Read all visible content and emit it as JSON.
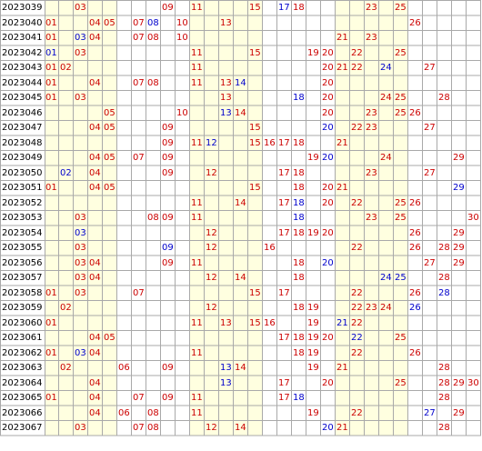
{
  "colors": {
    "red": "#cc0000",
    "blue": "#0000cc",
    "grid_line": "#a9a9a9",
    "yellow_col": "#ffffe0",
    "white_col": "#ffffff"
  },
  "rows": [
    {
      "issue": "2023039",
      "nums": [
        {
          "n": "03",
          "c": "red"
        },
        {
          "n": "09",
          "c": "red"
        },
        {
          "n": "11",
          "c": "red"
        },
        {
          "n": "15",
          "c": "red"
        },
        {
          "n": "17",
          "c": "blue"
        },
        {
          "n": "18",
          "c": "red"
        },
        {
          "n": "23",
          "c": "red"
        },
        {
          "n": "25",
          "c": "red"
        }
      ]
    },
    {
      "issue": "2023040",
      "nums": [
        {
          "n": "01",
          "c": "red"
        },
        {
          "n": "04",
          "c": "red"
        },
        {
          "n": "05",
          "c": "red"
        },
        {
          "n": "07",
          "c": "red"
        },
        {
          "n": "08",
          "c": "blue"
        },
        {
          "n": "10",
          "c": "red"
        },
        {
          "n": "13",
          "c": "red"
        },
        {
          "n": "26",
          "c": "red"
        }
      ]
    },
    {
      "issue": "2023041",
      "nums": [
        {
          "n": "01",
          "c": "red"
        },
        {
          "n": "03",
          "c": "blue"
        },
        {
          "n": "04",
          "c": "red"
        },
        {
          "n": "07",
          "c": "red"
        },
        {
          "n": "08",
          "c": "red"
        },
        {
          "n": "10",
          "c": "red"
        },
        {
          "n": "21",
          "c": "red"
        },
        {
          "n": "23",
          "c": "red"
        }
      ]
    },
    {
      "issue": "2023042",
      "nums": [
        {
          "n": "01",
          "c": "blue"
        },
        {
          "n": "03",
          "c": "red"
        },
        {
          "n": "11",
          "c": "red"
        },
        {
          "n": "15",
          "c": "red"
        },
        {
          "n": "19",
          "c": "red"
        },
        {
          "n": "20",
          "c": "red"
        },
        {
          "n": "22",
          "c": "red"
        },
        {
          "n": "25",
          "c": "red"
        }
      ]
    },
    {
      "issue": "2023043",
      "nums": [
        {
          "n": "01",
          "c": "red"
        },
        {
          "n": "02",
          "c": "red"
        },
        {
          "n": "11",
          "c": "red"
        },
        {
          "n": "20",
          "c": "red"
        },
        {
          "n": "21",
          "c": "red"
        },
        {
          "n": "22",
          "c": "red"
        },
        {
          "n": "24",
          "c": "blue"
        },
        {
          "n": "27",
          "c": "red"
        }
      ]
    },
    {
      "issue": "2023044",
      "nums": [
        {
          "n": "01",
          "c": "red"
        },
        {
          "n": "04",
          "c": "red"
        },
        {
          "n": "07",
          "c": "red"
        },
        {
          "n": "08",
          "c": "red"
        },
        {
          "n": "11",
          "c": "red"
        },
        {
          "n": "13",
          "c": "red"
        },
        {
          "n": "14",
          "c": "blue"
        },
        {
          "n": "20",
          "c": "red"
        }
      ]
    },
    {
      "issue": "2023045",
      "nums": [
        {
          "n": "01",
          "c": "red"
        },
        {
          "n": "03",
          "c": "red"
        },
        {
          "n": "13",
          "c": "red"
        },
        {
          "n": "18",
          "c": "blue"
        },
        {
          "n": "20",
          "c": "red"
        },
        {
          "n": "24",
          "c": "red"
        },
        {
          "n": "25",
          "c": "red"
        },
        {
          "n": "28",
          "c": "red"
        }
      ]
    },
    {
      "issue": "2023046",
      "nums": [
        {
          "n": "05",
          "c": "red"
        },
        {
          "n": "10",
          "c": "red"
        },
        {
          "n": "13",
          "c": "blue"
        },
        {
          "n": "14",
          "c": "red"
        },
        {
          "n": "20",
          "c": "red"
        },
        {
          "n": "23",
          "c": "red"
        },
        {
          "n": "25",
          "c": "red"
        },
        {
          "n": "26",
          "c": "red"
        }
      ]
    },
    {
      "issue": "2023047",
      "nums": [
        {
          "n": "04",
          "c": "red"
        },
        {
          "n": "05",
          "c": "red"
        },
        {
          "n": "09",
          "c": "red"
        },
        {
          "n": "15",
          "c": "red"
        },
        {
          "n": "20",
          "c": "blue"
        },
        {
          "n": "22",
          "c": "red"
        },
        {
          "n": "23",
          "c": "red"
        },
        {
          "n": "27",
          "c": "red"
        }
      ]
    },
    {
      "issue": "2023048",
      "nums": [
        {
          "n": "09",
          "c": "red"
        },
        {
          "n": "11",
          "c": "red"
        },
        {
          "n": "12",
          "c": "blue"
        },
        {
          "n": "15",
          "c": "red"
        },
        {
          "n": "16",
          "c": "red"
        },
        {
          "n": "17",
          "c": "red"
        },
        {
          "n": "18",
          "c": "red"
        },
        {
          "n": "21",
          "c": "red"
        }
      ]
    },
    {
      "issue": "2023049",
      "nums": [
        {
          "n": "04",
          "c": "red"
        },
        {
          "n": "05",
          "c": "red"
        },
        {
          "n": "07",
          "c": "red"
        },
        {
          "n": "09",
          "c": "red"
        },
        {
          "n": "19",
          "c": "red"
        },
        {
          "n": "20",
          "c": "blue"
        },
        {
          "n": "24",
          "c": "red"
        },
        {
          "n": "29",
          "c": "red"
        }
      ]
    },
    {
      "issue": "2023050",
      "nums": [
        {
          "n": "02",
          "c": "blue"
        },
        {
          "n": "04",
          "c": "red"
        },
        {
          "n": "09",
          "c": "red"
        },
        {
          "n": "12",
          "c": "red"
        },
        {
          "n": "17",
          "c": "red"
        },
        {
          "n": "18",
          "c": "red"
        },
        {
          "n": "23",
          "c": "red"
        },
        {
          "n": "27",
          "c": "red"
        }
      ]
    },
    {
      "issue": "2023051",
      "nums": [
        {
          "n": "01",
          "c": "red"
        },
        {
          "n": "04",
          "c": "red"
        },
        {
          "n": "05",
          "c": "red"
        },
        {
          "n": "15",
          "c": "red"
        },
        {
          "n": "18",
          "c": "red"
        },
        {
          "n": "20",
          "c": "red"
        },
        {
          "n": "21",
          "c": "red"
        },
        {
          "n": "29",
          "c": "blue"
        }
      ]
    },
    {
      "issue": "2023052",
      "nums": [
        {
          "n": "11",
          "c": "red"
        },
        {
          "n": "14",
          "c": "red"
        },
        {
          "n": "17",
          "c": "red"
        },
        {
          "n": "18",
          "c": "blue"
        },
        {
          "n": "20",
          "c": "red"
        },
        {
          "n": "22",
          "c": "red"
        },
        {
          "n": "25",
          "c": "red"
        },
        {
          "n": "26",
          "c": "red"
        }
      ]
    },
    {
      "issue": "2023053",
      "nums": [
        {
          "n": "03",
          "c": "red"
        },
        {
          "n": "08",
          "c": "red"
        },
        {
          "n": "09",
          "c": "red"
        },
        {
          "n": "11",
          "c": "red"
        },
        {
          "n": "18",
          "c": "blue"
        },
        {
          "n": "23",
          "c": "red"
        },
        {
          "n": "25",
          "c": "red"
        },
        {
          "n": "30",
          "c": "red"
        }
      ]
    },
    {
      "issue": "2023054",
      "nums": [
        {
          "n": "03",
          "c": "blue"
        },
        {
          "n": "12",
          "c": "red"
        },
        {
          "n": "17",
          "c": "red"
        },
        {
          "n": "18",
          "c": "red"
        },
        {
          "n": "19",
          "c": "red"
        },
        {
          "n": "20",
          "c": "red"
        },
        {
          "n": "26",
          "c": "red"
        },
        {
          "n": "29",
          "c": "red"
        }
      ]
    },
    {
      "issue": "2023055",
      "nums": [
        {
          "n": "03",
          "c": "red"
        },
        {
          "n": "09",
          "c": "blue"
        },
        {
          "n": "12",
          "c": "red"
        },
        {
          "n": "16",
          "c": "red"
        },
        {
          "n": "22",
          "c": "red"
        },
        {
          "n": "26",
          "c": "red"
        },
        {
          "n": "28",
          "c": "red"
        },
        {
          "n": "29",
          "c": "red"
        }
      ]
    },
    {
      "issue": "2023056",
      "nums": [
        {
          "n": "03",
          "c": "red"
        },
        {
          "n": "04",
          "c": "red"
        },
        {
          "n": "09",
          "c": "red"
        },
        {
          "n": "11",
          "c": "red"
        },
        {
          "n": "18",
          "c": "red"
        },
        {
          "n": "20",
          "c": "blue"
        },
        {
          "n": "27",
          "c": "red"
        },
        {
          "n": "29",
          "c": "red"
        }
      ]
    },
    {
      "issue": "2023057",
      "nums": [
        {
          "n": "03",
          "c": "red"
        },
        {
          "n": "04",
          "c": "red"
        },
        {
          "n": "12",
          "c": "red"
        },
        {
          "n": "14",
          "c": "red"
        },
        {
          "n": "18",
          "c": "red"
        },
        {
          "n": "24",
          "c": "blue"
        },
        {
          "n": "25",
          "c": "blue"
        },
        {
          "n": "28",
          "c": "red"
        }
      ]
    },
    {
      "issue": "2023058",
      "nums": [
        {
          "n": "01",
          "c": "red"
        },
        {
          "n": "03",
          "c": "red"
        },
        {
          "n": "07",
          "c": "red"
        },
        {
          "n": "15",
          "c": "red"
        },
        {
          "n": "17",
          "c": "red"
        },
        {
          "n": "22",
          "c": "red"
        },
        {
          "n": "26",
          "c": "red"
        },
        {
          "n": "28",
          "c": "blue"
        }
      ]
    },
    {
      "issue": "2023059",
      "nums": [
        {
          "n": "02",
          "c": "red"
        },
        {
          "n": "12",
          "c": "red"
        },
        {
          "n": "18",
          "c": "red"
        },
        {
          "n": "19",
          "c": "red"
        },
        {
          "n": "22",
          "c": "red"
        },
        {
          "n": "23",
          "c": "red"
        },
        {
          "n": "24",
          "c": "red"
        },
        {
          "n": "26",
          "c": "blue"
        }
      ]
    },
    {
      "issue": "2023060",
      "nums": [
        {
          "n": "01",
          "c": "red"
        },
        {
          "n": "11",
          "c": "red"
        },
        {
          "n": "13",
          "c": "red"
        },
        {
          "n": "15",
          "c": "red"
        },
        {
          "n": "16",
          "c": "red"
        },
        {
          "n": "19",
          "c": "red"
        },
        {
          "n": "21",
          "c": "blue"
        },
        {
          "n": "22",
          "c": "red"
        }
      ]
    },
    {
      "issue": "2023061",
      "nums": [
        {
          "n": "04",
          "c": "red"
        },
        {
          "n": "05",
          "c": "red"
        },
        {
          "n": "17",
          "c": "red"
        },
        {
          "n": "18",
          "c": "red"
        },
        {
          "n": "19",
          "c": "red"
        },
        {
          "n": "20",
          "c": "red"
        },
        {
          "n": "22",
          "c": "blue"
        },
        {
          "n": "25",
          "c": "red"
        }
      ]
    },
    {
      "issue": "2023062",
      "nums": [
        {
          "n": "01",
          "c": "red"
        },
        {
          "n": "03",
          "c": "blue"
        },
        {
          "n": "04",
          "c": "red"
        },
        {
          "n": "11",
          "c": "red"
        },
        {
          "n": "18",
          "c": "red"
        },
        {
          "n": "19",
          "c": "red"
        },
        {
          "n": "22",
          "c": "red"
        },
        {
          "n": "26",
          "c": "red"
        }
      ]
    },
    {
      "issue": "2023063",
      "nums": [
        {
          "n": "02",
          "c": "red"
        },
        {
          "n": "06",
          "c": "red"
        },
        {
          "n": "09",
          "c": "red"
        },
        {
          "n": "13",
          "c": "blue"
        },
        {
          "n": "14",
          "c": "red"
        },
        {
          "n": "19",
          "c": "red"
        },
        {
          "n": "21",
          "c": "red"
        },
        {
          "n": "28",
          "c": "red"
        }
      ]
    },
    {
      "issue": "2023064",
      "nums": [
        {
          "n": "04",
          "c": "red"
        },
        {
          "n": "13",
          "c": "blue"
        },
        {
          "n": "17",
          "c": "red"
        },
        {
          "n": "20",
          "c": "red"
        },
        {
          "n": "25",
          "c": "red"
        },
        {
          "n": "28",
          "c": "red"
        },
        {
          "n": "29",
          "c": "red"
        },
        {
          "n": "30",
          "c": "red"
        }
      ]
    },
    {
      "issue": "2023065",
      "nums": [
        {
          "n": "01",
          "c": "red"
        },
        {
          "n": "04",
          "c": "red"
        },
        {
          "n": "07",
          "c": "red"
        },
        {
          "n": "09",
          "c": "red"
        },
        {
          "n": "11",
          "c": "red"
        },
        {
          "n": "17",
          "c": "red"
        },
        {
          "n": "18",
          "c": "blue"
        },
        {
          "n": "28",
          "c": "red"
        }
      ]
    },
    {
      "issue": "2023066",
      "nums": [
        {
          "n": "04",
          "c": "red"
        },
        {
          "n": "06",
          "c": "red"
        },
        {
          "n": "08",
          "c": "red"
        },
        {
          "n": "11",
          "c": "red"
        },
        {
          "n": "19",
          "c": "red"
        },
        {
          "n": "22",
          "c": "red"
        },
        {
          "n": "27",
          "c": "blue"
        },
        {
          "n": "29",
          "c": "red"
        }
      ]
    },
    {
      "issue": "2023067",
      "nums": [
        {
          "n": "03",
          "c": "red"
        },
        {
          "n": "07",
          "c": "red"
        },
        {
          "n": "08",
          "c": "red"
        },
        {
          "n": "12",
          "c": "red"
        },
        {
          "n": "14",
          "c": "red"
        },
        {
          "n": "20",
          "c": "blue"
        },
        {
          "n": "21",
          "c": "red"
        },
        {
          "n": "28",
          "c": "red"
        }
      ]
    }
  ]
}
